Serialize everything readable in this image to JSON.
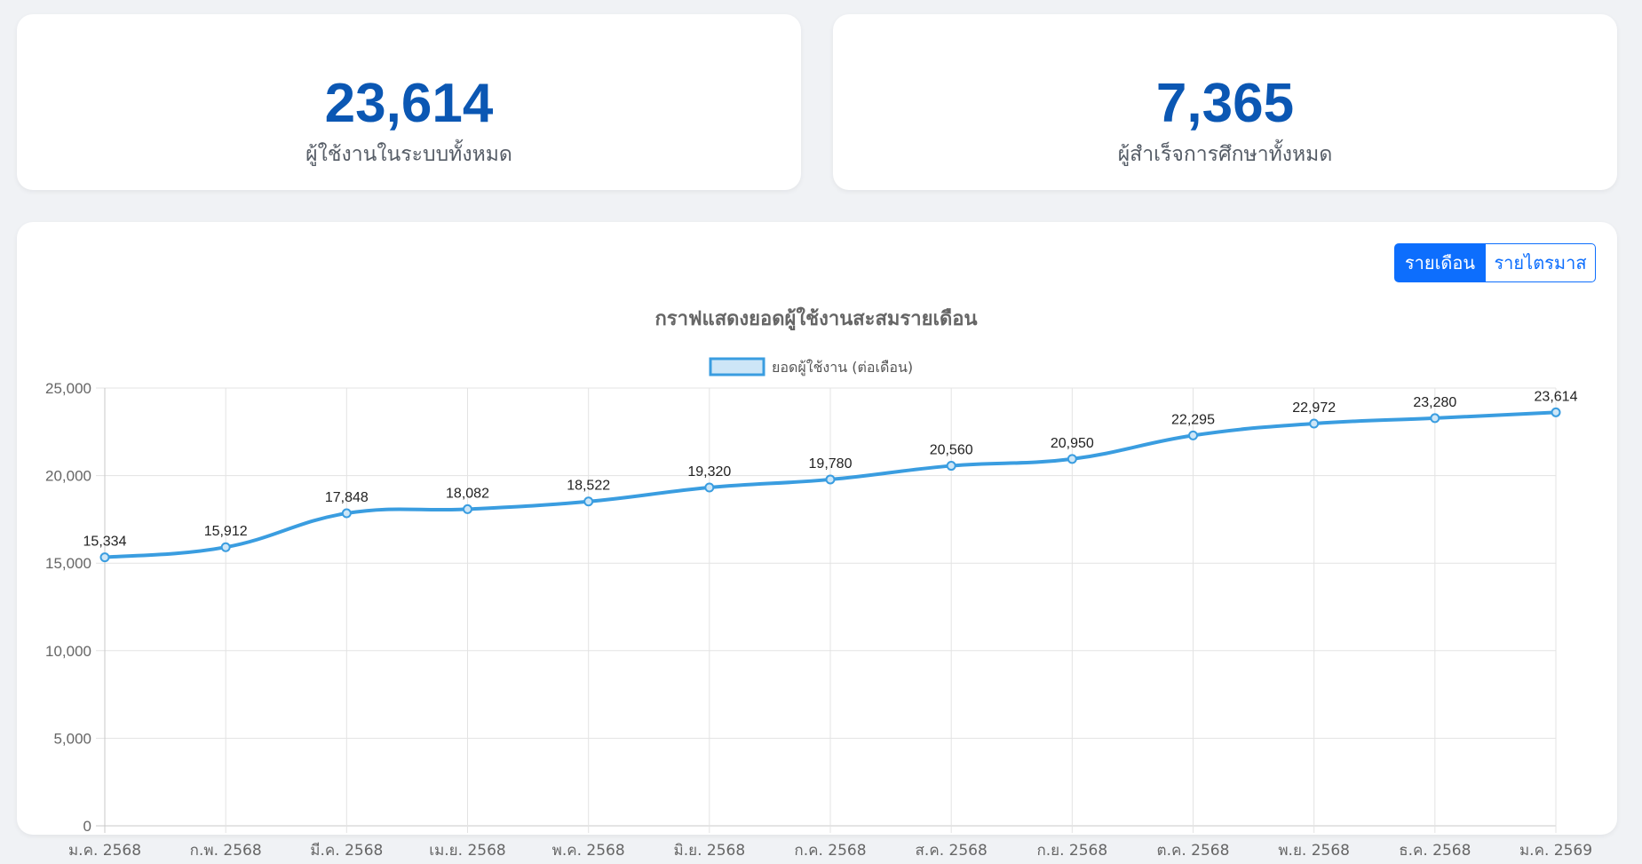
{
  "stats": [
    {
      "value": "23,614",
      "label": "ผู้ใช้งานในระบบทั้งหมด"
    },
    {
      "value": "7,365",
      "label": "ผู้สำเร็จการศึกษาทั้งหมด"
    }
  ],
  "toggle": {
    "monthly_label": "รายเดือน",
    "quarterly_label": "รายไตรมาส",
    "active": "monthly"
  },
  "colors": {
    "accent": "#0d6efd",
    "stat_value": "#0b57b3",
    "line": "#3a9de0",
    "legend_fill": "#cde6f7"
  },
  "chart_data": {
    "type": "line",
    "title": "กราฟแสดงยอดผู้ใช้งานสะสมรายเดือน",
    "categories": [
      "ม.ค. 2568",
      "ก.พ. 2568",
      "มี.ค. 2568",
      "เม.ย. 2568",
      "พ.ค. 2568",
      "มิ.ย. 2568",
      "ก.ค. 2568",
      "ส.ค. 2568",
      "ก.ย. 2568",
      "ต.ค. 2568",
      "พ.ย. 2568",
      "ธ.ค. 2568",
      "ม.ค. 2569"
    ],
    "series": [
      {
        "name": "ยอดผู้ใช้งาน (ต่อเดือน)",
        "values": [
          15334,
          15912,
          17848,
          18082,
          18522,
          19320,
          19780,
          20560,
          20950,
          22295,
          22972,
          23280,
          23614
        ]
      }
    ],
    "data_labels": [
      "15,334",
      "15,912",
      "17,848",
      "18,082",
      "18,522",
      "19,320",
      "19,780",
      "20,560",
      "20,950",
      "22,295",
      "22,972",
      "23,280",
      "23,614"
    ],
    "ylim": [
      0,
      25000
    ],
    "yticks": [
      "0",
      "5,000",
      "10,000",
      "15,000",
      "20,000",
      "25,000"
    ],
    "legend": "top-center",
    "grid": true
  }
}
